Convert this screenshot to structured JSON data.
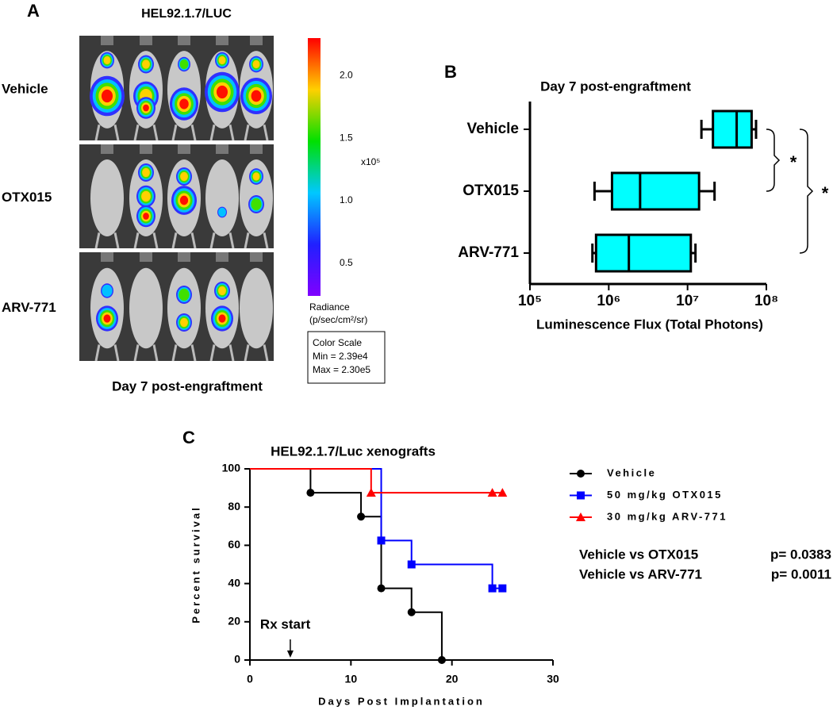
{
  "panel_a": {
    "label": "A",
    "title": "HEL92.1.7/LUC",
    "rows": [
      "Vehicle",
      "OTX015",
      "ARV-771"
    ],
    "caption": "Day 7 post-engraftment",
    "colorbar": {
      "ylim": [
        0.239,
        2.3
      ],
      "yticks": [
        0.5,
        {
          "value": 1,
          "label": "1.0"
        },
        1.5,
        {
          "value": 2,
          "label": "2.0"
        }
      ],
      "multiplier": "x10⁵",
      "unit_title": "Radiance",
      "unit": "(p/sec/cm²/sr)",
      "scale_box": {
        "title": "Color Scale",
        "min": "Min = 2.39e4",
        "max": "Max = 2.30e5"
      }
    }
  },
  "chart_data": [
    {
      "type": "box",
      "panel_label": "B",
      "title": "Day 7 post-engraftment",
      "categories": [
        "Vehicle",
        "OTX015",
        "ARV-771"
      ],
      "stats": [
        {
          "min": 15000000,
          "q1": 21000000,
          "median": 42000000,
          "q3": 65000000,
          "max": 74000000
        },
        {
          "min": 660000,
          "q1": 1100000,
          "median": 2500000,
          "q3": 14000000,
          "max": 22000000
        },
        {
          "min": 620000,
          "q1": 690000,
          "median": 1800000,
          "q3": 11000000,
          "max": 12600000
        }
      ],
      "color": "#00ffff",
      "xscale": "log",
      "xlim": [
        100000,
        100000000
      ],
      "xticks": [
        {
          "value": 100000,
          "label": "10⁵"
        },
        {
          "value": 1000000,
          "label": "10⁶"
        },
        {
          "value": 10000000,
          "label": "10⁷"
        },
        {
          "value": 100000000,
          "label": "10⁸"
        }
      ],
      "xlabel": "Luminescence Flux (Total Photons)",
      "annotations": [
        "*",
        "*"
      ]
    },
    {
      "type": "line",
      "step": true,
      "panel_label": "C",
      "title": "HEL92.1.7/Luc xenografts",
      "series": [
        {
          "name": "Vehicle",
          "color": "#000000",
          "marker": "circle",
          "x": [
            0,
            6,
            11,
            13,
            16,
            19
          ],
          "values": [
            100,
            87.5,
            75,
            37.5,
            25,
            0
          ]
        },
        {
          "name": "50 mg/kg OTX015",
          "color": "#0000ff",
          "marker": "square",
          "x": [
            0,
            13,
            16,
            24,
            25
          ],
          "values": [
            100,
            62.5,
            50,
            37.5,
            37.5
          ]
        },
        {
          "name": "30 mg/kg ARV-771",
          "color": "#ff0000",
          "marker": "triangle",
          "x": [
            0,
            12,
            24,
            25
          ],
          "values": [
            100,
            87.5,
            87.5,
            87.5
          ]
        }
      ],
      "xlim": [
        0,
        30
      ],
      "xticks": [
        0,
        10,
        20,
        30
      ],
      "ylim": [
        0,
        100
      ],
      "yticks": [
        0,
        20,
        40,
        60,
        80,
        100
      ],
      "xlabel": "Days Post Implantation",
      "ylabel": "Percent survival",
      "annotation": {
        "text": "Rx start",
        "x": 4
      },
      "stats": [
        [
          "Vehicle vs OTX015",
          "p= 0.0383"
        ],
        [
          "Vehicle vs ARV-771",
          "p= 0.0011"
        ]
      ]
    }
  ]
}
